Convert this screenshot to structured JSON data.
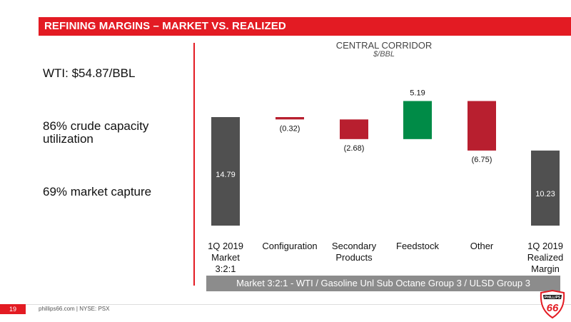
{
  "header": {
    "title": "REFINING MARGINS – MARKET VS. REALIZED"
  },
  "kpis": [
    {
      "text": "WTI: $54.87/BBL"
    },
    {
      "text": "86% crude capacity utilization"
    },
    {
      "text": "69% market capture"
    }
  ],
  "chart_data": {
    "type": "waterfall",
    "title": "CENTRAL CORRIDOR",
    "subtitle": "$/BBL",
    "categories": [
      "1Q 2019 Market 3:2:1",
      "Configuration",
      "Secondary Products",
      "Feedstock",
      "Other",
      "1Q 2019 Realized Margin"
    ],
    "values": [
      14.79,
      -0.32,
      -2.68,
      5.19,
      -6.75,
      10.23
    ],
    "value_labels": [
      "14.79",
      "(0.32)",
      "(2.68)",
      "5.19",
      "(6.75)",
      "10.23"
    ],
    "kinds": [
      "total",
      "delta",
      "delta",
      "delta",
      "delta",
      "total"
    ],
    "colors": {
      "total": "#505050",
      "negative": "#b81f2f",
      "positive": "#008b47"
    },
    "grid": false,
    "legend": "none"
  },
  "note": "Market 3:2:1 - WTI / Gasoline Unl Sub Octane Group 3 / ULSD Group 3",
  "footer": {
    "page": "19",
    "text": "phillips66.com  |  NYSE: PSX"
  },
  "logo": {
    "icon": "phillips66-shield-logo",
    "text": "PHILLIPS",
    "number": "66"
  }
}
